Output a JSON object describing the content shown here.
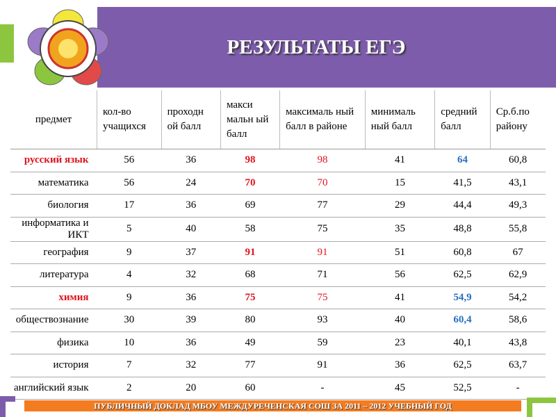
{
  "header": {
    "title": "РЕЗУЛЬТАТЫ ЕГЭ"
  },
  "table": {
    "columns": [
      "предмет",
      "кол-во учащихся",
      "проходн ой балл",
      "макси мальн ый балл",
      "максималь ный балл в районе",
      "минималь ный балл",
      "средний балл",
      "Ср.б.по району"
    ],
    "rows": [
      [
        "русский язык",
        "56",
        "36",
        "98",
        "98",
        "41",
        "64",
        "60,8"
      ],
      [
        "математика",
        "56",
        "24",
        "70",
        "70",
        "15",
        "41,5",
        "43,1"
      ],
      [
        "биология",
        "17",
        "36",
        "69",
        "77",
        "29",
        "44,4",
        "49,3"
      ],
      [
        "информатика и ИКТ",
        "5",
        "40",
        "58",
        "75",
        "35",
        "48,8",
        "55,8"
      ],
      [
        "география",
        "9",
        "37",
        "91",
        "91",
        "51",
        "60,8",
        "67"
      ],
      [
        "литература",
        "4",
        "32",
        "68",
        "71",
        "56",
        "62,5",
        "62,9"
      ],
      [
        "химия",
        "9",
        "36",
        "75",
        "75",
        "41",
        "54,9",
        "54,2"
      ],
      [
        "обществознание",
        "30",
        "39",
        "80",
        "93",
        "40",
        "60,4",
        "58,6"
      ],
      [
        "физика",
        "10",
        "36",
        "49",
        "59",
        "23",
        "40,1",
        "43,8"
      ],
      [
        "история",
        "7",
        "32",
        "77",
        "91",
        "36",
        "62,5",
        "63,7"
      ],
      [
        "английский язык",
        "2",
        "20",
        "60",
        "-",
        "45",
        "52,5",
        "-"
      ]
    ]
  },
  "footer": {
    "text": "ПУБЛИЧНЫЙ ДОКЛАД МБОУ МЕЖДУРЕЧЕНСКАЯ СОШ ЗА 2011 – 2012 УЧЕБНЫЙ ГОД"
  }
}
